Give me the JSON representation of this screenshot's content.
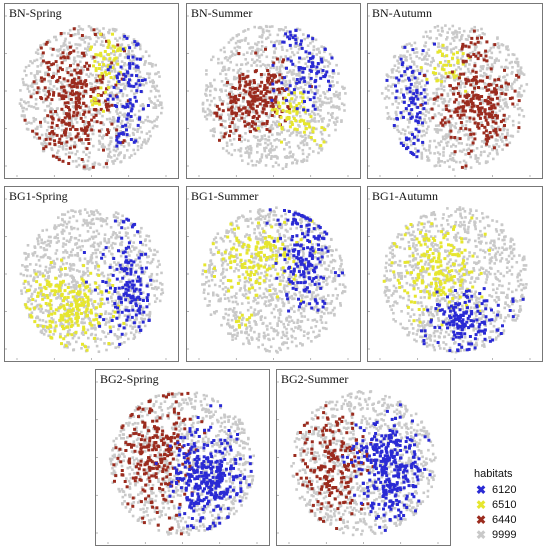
{
  "chart_data": {
    "type": "scatter",
    "legend": {
      "title": "habitats",
      "placement": "bottom-right",
      "entries": [
        {
          "label": "6120",
          "color": "#2a2ad4",
          "marker": "✖"
        },
        {
          "label": "6510",
          "color": "#e6e62e",
          "marker": "✖"
        },
        {
          "label": "6440",
          "color": "#9b2b1e",
          "marker": "✖"
        },
        {
          "label": "9999",
          "color": "#c9c9c9",
          "marker": "✖"
        }
      ]
    },
    "panels": [
      {
        "title": "BN-Spring",
        "clusters": [
          {
            "habitat": "6440",
            "cx": -0.25,
            "cy": 0.05,
            "sx": 0.28,
            "sy": 0.42,
            "n": 300
          },
          {
            "habitat": "6510",
            "cx": 0.22,
            "cy": -0.5,
            "sx": 0.1,
            "sy": 0.18,
            "n": 50
          },
          {
            "habitat": "6510",
            "cx": 0.05,
            "cy": 0.0,
            "sx": 0.06,
            "sy": 0.1,
            "n": 12
          },
          {
            "habitat": "6120",
            "cx": 0.55,
            "cy": -0.25,
            "sx": 0.14,
            "sy": 0.35,
            "n": 75
          },
          {
            "habitat": "6120",
            "cx": 0.45,
            "cy": 0.45,
            "sx": 0.12,
            "sy": 0.15,
            "n": 20
          }
        ]
      },
      {
        "title": "BN-Summer",
        "clusters": [
          {
            "habitat": "6440",
            "cx": -0.2,
            "cy": 0.0,
            "sx": 0.22,
            "sy": 0.22,
            "n": 200
          },
          {
            "habitat": "6440",
            "cx": -0.55,
            "cy": 0.25,
            "sx": 0.12,
            "sy": 0.2,
            "n": 25
          },
          {
            "habitat": "6510",
            "cx": 0.25,
            "cy": 0.2,
            "sx": 0.14,
            "sy": 0.14,
            "n": 55
          },
          {
            "habitat": "6510",
            "cx": 0.6,
            "cy": 0.5,
            "sx": 0.08,
            "sy": 0.08,
            "n": 12
          },
          {
            "habitat": "6120",
            "cx": 0.45,
            "cy": -0.35,
            "sx": 0.2,
            "sy": 0.25,
            "n": 85
          },
          {
            "habitat": "6120",
            "cx": 0.25,
            "cy": -0.85,
            "sx": 0.07,
            "sy": 0.07,
            "n": 12
          }
        ]
      },
      {
        "title": "BN-Autumn",
        "clusters": [
          {
            "habitat": "6120",
            "cx": -0.6,
            "cy": 0.1,
            "sx": 0.14,
            "sy": 0.4,
            "n": 90
          },
          {
            "habitat": "6510",
            "cx": -0.1,
            "cy": -0.45,
            "sx": 0.15,
            "sy": 0.15,
            "n": 40
          },
          {
            "habitat": "6440",
            "cx": 0.3,
            "cy": 0.1,
            "sx": 0.25,
            "sy": 0.3,
            "n": 240
          },
          {
            "habitat": "6440",
            "cx": 0.25,
            "cy": -0.7,
            "sx": 0.1,
            "sy": 0.1,
            "n": 18
          }
        ]
      },
      {
        "title": "BG1-Spring",
        "clusters": [
          {
            "habitat": "6510",
            "cx": -0.3,
            "cy": 0.35,
            "sx": 0.3,
            "sy": 0.25,
            "n": 220
          },
          {
            "habitat": "6120",
            "cx": 0.5,
            "cy": 0.1,
            "sx": 0.17,
            "sy": 0.35,
            "n": 150
          },
          {
            "habitat": "6120",
            "cx": 0.5,
            "cy": -0.85,
            "sx": 0.08,
            "sy": 0.05,
            "n": 6
          }
        ]
      },
      {
        "title": "BG1-Summer",
        "clusters": [
          {
            "habitat": "6510",
            "cx": -0.25,
            "cy": -0.3,
            "sx": 0.3,
            "sy": 0.25,
            "n": 150
          },
          {
            "habitat": "6510",
            "cx": -0.45,
            "cy": 0.55,
            "sx": 0.07,
            "sy": 0.08,
            "n": 10
          },
          {
            "habitat": "6120",
            "cx": 0.4,
            "cy": -0.35,
            "sx": 0.2,
            "sy": 0.35,
            "n": 170
          },
          {
            "habitat": "6120",
            "cx": 0.6,
            "cy": 0.35,
            "sx": 0.06,
            "sy": 0.06,
            "n": 8
          }
        ]
      },
      {
        "title": "BG1-Autumn",
        "clusters": [
          {
            "habitat": "6510",
            "cx": -0.25,
            "cy": -0.1,
            "sx": 0.3,
            "sy": 0.3,
            "n": 190
          },
          {
            "habitat": "6120",
            "cx": 0.2,
            "cy": 0.55,
            "sx": 0.28,
            "sy": 0.2,
            "n": 160
          }
        ]
      },
      {
        "title": "BG2-Spring",
        "clusters": [
          {
            "habitat": "6440",
            "cx": -0.4,
            "cy": -0.1,
            "sx": 0.24,
            "sy": 0.4,
            "n": 260
          },
          {
            "habitat": "6120",
            "cx": 0.35,
            "cy": 0.15,
            "sx": 0.23,
            "sy": 0.3,
            "n": 330
          }
        ]
      },
      {
        "title": "BG2-Summer",
        "clusters": [
          {
            "habitat": "6440",
            "cx": -0.4,
            "cy": 0.0,
            "sx": 0.22,
            "sy": 0.35,
            "n": 190
          },
          {
            "habitat": "6120",
            "cx": 0.35,
            "cy": 0.05,
            "sx": 0.23,
            "sy": 0.35,
            "n": 320
          }
        ]
      }
    ],
    "grid": false,
    "background_points": 900
  }
}
